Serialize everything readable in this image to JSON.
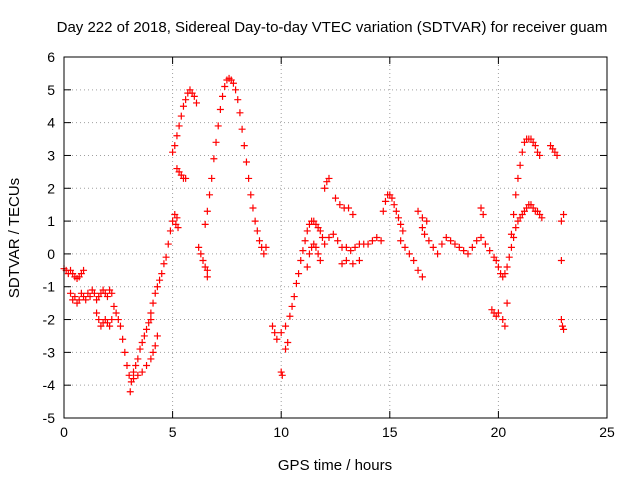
{
  "chart_data": {
    "type": "scatter",
    "title": "Day 222 of 2018, Sidereal Day-to-day VTEC variation (SDTVAR) for receiver guam",
    "xlabel": "GPS time / hours",
    "ylabel": "SDTVAR / TECUs",
    "xlim": [
      0,
      25
    ],
    "ylim": [
      -5,
      6
    ],
    "xticks": [
      0,
      5,
      10,
      15,
      20,
      25
    ],
    "yticks": [
      -5,
      -4,
      -3,
      -2,
      -1,
      0,
      1,
      2,
      3,
      4,
      5,
      6
    ],
    "grid": true,
    "marker": "+",
    "series_color": "#ff0000",
    "series": [
      {
        "name": "SDTVAR",
        "points": [
          [
            0.0,
            -0.45
          ],
          [
            0.1,
            -0.5
          ],
          [
            0.2,
            -0.6
          ],
          [
            0.3,
            -0.5
          ],
          [
            0.4,
            -0.6
          ],
          [
            0.5,
            -0.7
          ],
          [
            0.6,
            -0.75
          ],
          [
            0.7,
            -0.7
          ],
          [
            0.8,
            -0.6
          ],
          [
            0.9,
            -0.5
          ],
          [
            0.3,
            -1.2
          ],
          [
            0.4,
            -1.4
          ],
          [
            0.5,
            -1.3
          ],
          [
            0.6,
            -1.5
          ],
          [
            0.7,
            -1.4
          ],
          [
            0.8,
            -1.2
          ],
          [
            0.9,
            -1.3
          ],
          [
            1.0,
            -1.4
          ],
          [
            1.1,
            -1.2
          ],
          [
            1.2,
            -1.3
          ],
          [
            1.3,
            -1.1
          ],
          [
            1.4,
            -1.2
          ],
          [
            1.5,
            -1.4
          ],
          [
            1.6,
            -1.3
          ],
          [
            1.7,
            -1.2
          ],
          [
            1.8,
            -1.1
          ],
          [
            1.9,
            -1.2
          ],
          [
            2.0,
            -1.3
          ],
          [
            2.1,
            -1.1
          ],
          [
            2.2,
            -1.2
          ],
          [
            1.5,
            -1.8
          ],
          [
            1.6,
            -2.0
          ],
          [
            1.7,
            -2.2
          ],
          [
            1.8,
            -2.1
          ],
          [
            1.9,
            -2.0
          ],
          [
            2.0,
            -2.1
          ],
          [
            2.1,
            -2.2
          ],
          [
            2.2,
            -2.0
          ],
          [
            2.3,
            -1.6
          ],
          [
            2.4,
            -1.8
          ],
          [
            2.5,
            -2.0
          ],
          [
            2.6,
            -2.2
          ],
          [
            2.7,
            -2.6
          ],
          [
            2.8,
            -3.0
          ],
          [
            2.9,
            -3.4
          ],
          [
            3.0,
            -3.7
          ],
          [
            3.05,
            -4.2
          ],
          [
            3.1,
            -3.9
          ],
          [
            3.2,
            -3.6
          ],
          [
            3.3,
            -3.4
          ],
          [
            3.4,
            -3.2
          ],
          [
            3.5,
            -2.9
          ],
          [
            3.6,
            -2.7
          ],
          [
            3.7,
            -2.5
          ],
          [
            3.8,
            -2.3
          ],
          [
            3.9,
            -2.1
          ],
          [
            4.0,
            -2.0
          ],
          [
            3.2,
            -3.8
          ],
          [
            3.4,
            -3.7
          ],
          [
            3.6,
            -3.6
          ],
          [
            3.8,
            -3.4
          ],
          [
            4.0,
            -3.2
          ],
          [
            4.1,
            -3.0
          ],
          [
            4.2,
            -2.8
          ],
          [
            4.3,
            -2.5
          ],
          [
            4.0,
            -1.8
          ],
          [
            4.1,
            -1.5
          ],
          [
            4.2,
            -1.2
          ],
          [
            4.3,
            -1.0
          ],
          [
            4.4,
            -0.8
          ],
          [
            4.5,
            -0.6
          ],
          [
            4.6,
            -0.3
          ],
          [
            4.7,
            -0.1
          ],
          [
            4.8,
            0.3
          ],
          [
            4.9,
            0.7
          ],
          [
            5.0,
            1.0
          ],
          [
            5.1,
            1.2
          ],
          [
            5.15,
            0.9
          ],
          [
            5.2,
            1.1
          ],
          [
            5.25,
            0.8
          ],
          [
            5.0,
            3.1
          ],
          [
            5.1,
            3.3
          ],
          [
            5.2,
            3.6
          ],
          [
            5.3,
            3.9
          ],
          [
            5.4,
            4.2
          ],
          [
            5.5,
            4.5
          ],
          [
            5.6,
            4.7
          ],
          [
            5.7,
            4.9
          ],
          [
            5.8,
            5.0
          ],
          [
            5.9,
            4.9
          ],
          [
            6.0,
            4.8
          ],
          [
            6.1,
            4.6
          ],
          [
            5.2,
            2.6
          ],
          [
            5.3,
            2.5
          ],
          [
            5.4,
            2.4
          ],
          [
            5.5,
            2.3
          ],
          [
            5.6,
            2.3
          ],
          [
            6.2,
            0.2
          ],
          [
            6.3,
            0.0
          ],
          [
            6.4,
            -0.2
          ],
          [
            6.5,
            -0.4
          ],
          [
            6.6,
            -0.5
          ],
          [
            6.6,
            -0.7
          ],
          [
            6.5,
            0.9
          ],
          [
            6.6,
            1.3
          ],
          [
            6.7,
            1.8
          ],
          [
            6.8,
            2.3
          ],
          [
            6.9,
            2.9
          ],
          [
            7.0,
            3.4
          ],
          [
            7.1,
            3.9
          ],
          [
            7.2,
            4.4
          ],
          [
            7.3,
            4.8
          ],
          [
            7.4,
            5.1
          ],
          [
            7.5,
            5.3
          ],
          [
            7.6,
            5.35
          ],
          [
            7.7,
            5.3
          ],
          [
            7.8,
            5.2
          ],
          [
            7.9,
            5.0
          ],
          [
            8.0,
            4.7
          ],
          [
            8.1,
            4.3
          ],
          [
            8.2,
            3.8
          ],
          [
            8.3,
            3.3
          ],
          [
            8.4,
            2.8
          ],
          [
            8.5,
            2.3
          ],
          [
            8.6,
            1.8
          ],
          [
            8.7,
            1.4
          ],
          [
            8.8,
            1.0
          ],
          [
            8.9,
            0.7
          ],
          [
            9.0,
            0.4
          ],
          [
            9.1,
            0.2
          ],
          [
            9.2,
            0.0
          ],
          [
            9.3,
            0.2
          ],
          [
            9.6,
            -2.2
          ],
          [
            9.7,
            -2.4
          ],
          [
            9.8,
            -2.6
          ],
          [
            10.0,
            -3.6
          ],
          [
            10.05,
            -3.7
          ],
          [
            10.2,
            -2.9
          ],
          [
            10.3,
            -2.7
          ],
          [
            10.0,
            -2.4
          ],
          [
            10.2,
            -2.2
          ],
          [
            10.4,
            -1.9
          ],
          [
            10.5,
            -1.6
          ],
          [
            10.6,
            -1.3
          ],
          [
            10.7,
            -0.9
          ],
          [
            10.8,
            -0.6
          ],
          [
            10.9,
            -0.2
          ],
          [
            11.0,
            0.1
          ],
          [
            11.1,
            0.4
          ],
          [
            11.2,
            0.7
          ],
          [
            11.3,
            0.9
          ],
          [
            11.4,
            1.0
          ],
          [
            11.5,
            1.0
          ],
          [
            11.6,
            0.9
          ],
          [
            11.7,
            0.8
          ],
          [
            11.8,
            0.7
          ],
          [
            11.9,
            0.5
          ],
          [
            11.2,
            -0.4
          ],
          [
            11.3,
            0.0
          ],
          [
            11.4,
            0.2
          ],
          [
            11.5,
            0.3
          ],
          [
            11.6,
            0.2
          ],
          [
            11.7,
            0.0
          ],
          [
            11.8,
            -0.2
          ],
          [
            12.0,
            0.3
          ],
          [
            12.2,
            0.5
          ],
          [
            12.4,
            0.6
          ],
          [
            12.6,
            0.4
          ],
          [
            12.8,
            0.2
          ],
          [
            13.0,
            0.2
          ],
          [
            13.2,
            0.1
          ],
          [
            13.4,
            0.2
          ],
          [
            13.6,
            0.3
          ],
          [
            13.8,
            0.3
          ],
          [
            14.0,
            0.3
          ],
          [
            14.2,
            0.4
          ],
          [
            14.4,
            0.5
          ],
          [
            14.6,
            0.4
          ],
          [
            12.0,
            2.0
          ],
          [
            12.1,
            2.2
          ],
          [
            12.2,
            2.3
          ],
          [
            12.5,
            1.7
          ],
          [
            12.7,
            1.5
          ],
          [
            12.9,
            1.4
          ],
          [
            13.1,
            1.4
          ],
          [
            13.3,
            1.2
          ],
          [
            12.8,
            -0.3
          ],
          [
            13.0,
            -0.2
          ],
          [
            13.3,
            -0.3
          ],
          [
            13.6,
            -0.2
          ],
          [
            14.7,
            1.3
          ],
          [
            14.8,
            1.6
          ],
          [
            14.9,
            1.8
          ],
          [
            15.0,
            1.8
          ],
          [
            15.1,
            1.7
          ],
          [
            15.2,
            1.5
          ],
          [
            15.3,
            1.3
          ],
          [
            15.4,
            1.1
          ],
          [
            15.5,
            0.9
          ],
          [
            15.6,
            0.7
          ],
          [
            15.5,
            0.4
          ],
          [
            15.7,
            0.2
          ],
          [
            15.9,
            0.0
          ],
          [
            16.1,
            -0.2
          ],
          [
            16.3,
            -0.5
          ],
          [
            16.5,
            -0.7
          ],
          [
            16.5,
            0.8
          ],
          [
            16.6,
            0.6
          ],
          [
            16.8,
            0.4
          ],
          [
            17.0,
            0.2
          ],
          [
            17.2,
            0.0
          ],
          [
            17.4,
            0.3
          ],
          [
            17.6,
            0.5
          ],
          [
            17.8,
            0.4
          ],
          [
            18.0,
            0.3
          ],
          [
            18.2,
            0.2
          ],
          [
            18.4,
            0.1
          ],
          [
            18.6,
            0.0
          ],
          [
            18.8,
            0.2
          ],
          [
            19.0,
            0.4
          ],
          [
            19.2,
            0.5
          ],
          [
            19.4,
            0.3
          ],
          [
            19.6,
            0.1
          ],
          [
            19.8,
            -0.1
          ],
          [
            16.3,
            1.3
          ],
          [
            16.5,
            1.1
          ],
          [
            16.7,
            1.0
          ],
          [
            19.2,
            1.4
          ],
          [
            19.3,
            1.2
          ],
          [
            19.7,
            -1.7
          ],
          [
            19.8,
            -1.8
          ],
          [
            19.9,
            -1.9
          ],
          [
            20.0,
            -1.8
          ],
          [
            19.9,
            -0.2
          ],
          [
            20.0,
            -0.4
          ],
          [
            20.1,
            -0.6
          ],
          [
            20.2,
            -0.7
          ],
          [
            20.3,
            -0.6
          ],
          [
            20.4,
            -0.4
          ],
          [
            20.5,
            -0.1
          ],
          [
            20.6,
            0.2
          ],
          [
            20.7,
            0.5
          ],
          [
            20.8,
            0.8
          ],
          [
            20.9,
            1.0
          ],
          [
            21.0,
            1.1
          ],
          [
            21.1,
            1.2
          ],
          [
            21.2,
            1.3
          ],
          [
            21.3,
            1.4
          ],
          [
            21.4,
            1.5
          ],
          [
            21.5,
            1.5
          ],
          [
            21.6,
            1.4
          ],
          [
            21.7,
            1.3
          ],
          [
            21.8,
            1.3
          ],
          [
            21.9,
            1.2
          ],
          [
            22.0,
            1.1
          ],
          [
            20.2,
            -2.0
          ],
          [
            20.3,
            -2.2
          ],
          [
            20.4,
            -1.5
          ],
          [
            20.6,
            0.6
          ],
          [
            20.7,
            1.2
          ],
          [
            20.8,
            1.8
          ],
          [
            20.9,
            2.3
          ],
          [
            21.0,
            2.7
          ],
          [
            21.1,
            3.1
          ],
          [
            21.2,
            3.4
          ],
          [
            21.3,
            3.5
          ],
          [
            21.4,
            3.5
          ],
          [
            21.5,
            3.5
          ],
          [
            21.6,
            3.4
          ],
          [
            21.7,
            3.3
          ],
          [
            21.8,
            3.1
          ],
          [
            21.9,
            3.0
          ],
          [
            22.4,
            3.3
          ],
          [
            22.5,
            3.2
          ],
          [
            22.6,
            3.1
          ],
          [
            22.7,
            3.0
          ],
          [
            22.9,
            1.0
          ],
          [
            23.0,
            1.2
          ],
          [
            22.9,
            -0.2
          ],
          [
            22.9,
            -2.0
          ],
          [
            22.95,
            -2.2
          ],
          [
            23.0,
            -2.3
          ]
        ]
      }
    ]
  }
}
